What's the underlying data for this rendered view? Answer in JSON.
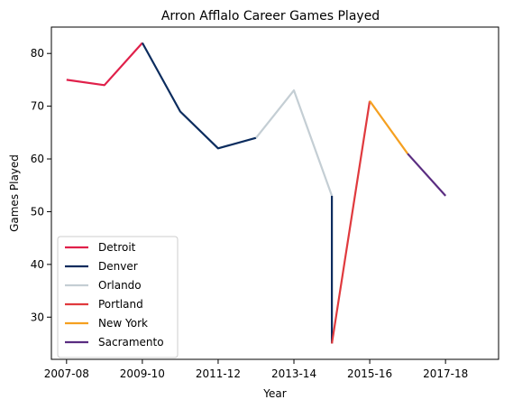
{
  "chart_data": {
    "type": "line",
    "title": "Arron Afflalo Career Games Played",
    "xlabel": "Year",
    "ylabel": "Games Played",
    "x_ticks": [
      "2007-08",
      "2009-10",
      "2011-12",
      "2013-14",
      "2015-16",
      "2017-18"
    ],
    "y_ticks": [
      30,
      40,
      50,
      60,
      70,
      80
    ],
    "xlim": [
      2006.6,
      2018.4
    ],
    "ylim": [
      22,
      85
    ],
    "grid": false,
    "legend_position": "lower-left",
    "series": [
      {
        "name": "Detroit",
        "color": "#e0204a",
        "points": [
          [
            2007,
            75
          ],
          [
            2008,
            74
          ],
          [
            2009,
            82
          ]
        ]
      },
      {
        "name": "Denver",
        "color": "#0b2c5e",
        "points": [
          [
            2009,
            82
          ],
          [
            2010,
            69
          ],
          [
            2011,
            62
          ],
          [
            2012,
            64
          ]
        ]
      },
      {
        "name": "Orlando",
        "color": "#c4ced4",
        "points": [
          [
            2012,
            64
          ],
          [
            2013,
            73
          ],
          [
            2014,
            53
          ]
        ]
      },
      {
        "name": "Denver-2",
        "color": "#0b2c5e",
        "points": [
          [
            2014,
            53
          ],
          [
            2014,
            25
          ]
        ]
      },
      {
        "name": "Portland",
        "color": "#e03a3e",
        "points": [
          [
            2014,
            25
          ],
          [
            2015,
            71
          ]
        ]
      },
      {
        "name": "New York",
        "color": "#f5a020",
        "points": [
          [
            2015,
            71
          ],
          [
            2016,
            61
          ]
        ]
      },
      {
        "name": "Sacramento",
        "color": "#5a2d81",
        "points": [
          [
            2016,
            61
          ],
          [
            2017,
            53
          ]
        ]
      }
    ],
    "legend": [
      {
        "label": "Detroit",
        "color": "#e0204a"
      },
      {
        "label": "Denver",
        "color": "#0b2c5e"
      },
      {
        "label": "Orlando",
        "color": "#c4ced4"
      },
      {
        "label": "Portland",
        "color": "#e03a3e"
      },
      {
        "label": "New York",
        "color": "#f5a020"
      },
      {
        "label": "Sacramento",
        "color": "#5a2d81"
      }
    ]
  }
}
